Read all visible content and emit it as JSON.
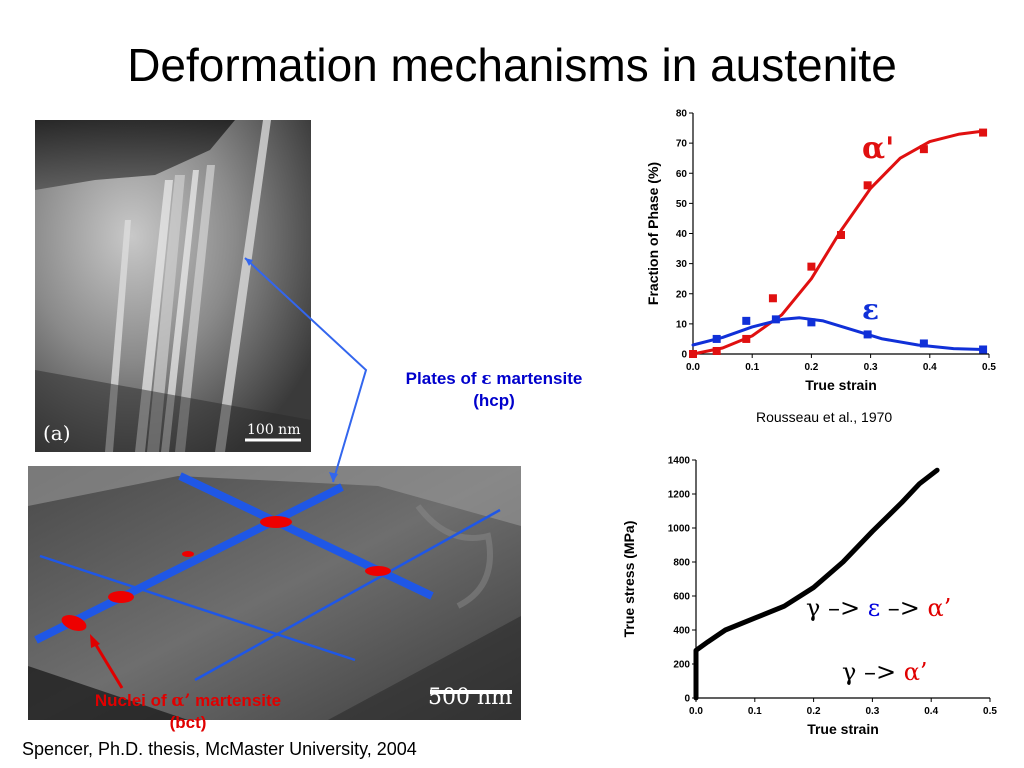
{
  "slide": {
    "title": "Deformation mechanisms in austenite"
  },
  "micrograph_top": {
    "panel_label": "(a)",
    "scale_bar": "100 nm"
  },
  "micrograph_bottom": {
    "scale_bar": "500 nm"
  },
  "callouts": {
    "plates_prefix": "Plates of ",
    "plates_greek": "ε",
    "plates_suffix": " martensite",
    "plates_line2": "(hcp)",
    "nuclei_prefix": "Nuclei of ",
    "nuclei_greek": "α’",
    "nuclei_suffix": " martensite",
    "nuclei_line2": "(bct)",
    "colors": {
      "blue": "#0000cc",
      "red": "#e00000",
      "line_blue": "#1f57e6"
    }
  },
  "citations": {
    "bottom": "Spencer, Ph.D. thesis, McMaster University, 2004",
    "chart_top": "Rousseau et al., 1970"
  },
  "routes": {
    "route1": {
      "gamma": "γ",
      "arrow1": " –> ",
      "epsilon": "ε",
      "arrow2": " –> ",
      "alpha": "α’"
    },
    "route2": {
      "gamma": "γ",
      "arrow": " –> ",
      "alpha": "α’"
    }
  },
  "chart_data": [
    {
      "type": "scatter",
      "xlabel": "True strain",
      "ylabel": "Fraction of Phase (%)",
      "xlim": [
        0,
        0.5
      ],
      "ylim": [
        0,
        80
      ],
      "xticks": [
        "0.0",
        "0.1",
        "0.2",
        "0.3",
        "0.4",
        "0.5"
      ],
      "yticks": [
        "0",
        "10",
        "20",
        "30",
        "40",
        "50",
        "60",
        "70",
        "80"
      ],
      "series": [
        {
          "name": "α'",
          "color": "#e01010",
          "points": [
            [
              0.0,
              0.0
            ],
            [
              0.04,
              1.0
            ],
            [
              0.09,
              5.0
            ],
            [
              0.135,
              18.5
            ],
            [
              0.2,
              29
            ],
            [
              0.25,
              39.5
            ],
            [
              0.295,
              56
            ],
            [
              0.39,
              68
            ],
            [
              0.49,
              73.5
            ]
          ],
          "fit": [
            [
              0.0,
              0
            ],
            [
              0.05,
              2
            ],
            [
              0.1,
              6
            ],
            [
              0.15,
              13
            ],
            [
              0.2,
              25
            ],
            [
              0.25,
              41
            ],
            [
              0.3,
              55
            ],
            [
              0.35,
              65
            ],
            [
              0.4,
              70.5
            ],
            [
              0.45,
              73
            ],
            [
              0.49,
              74
            ]
          ]
        },
        {
          "name": "ε",
          "color": "#1030d8",
          "points": [
            [
              0.04,
              5.0
            ],
            [
              0.09,
              11.0
            ],
            [
              0.14,
              11.5
            ],
            [
              0.2,
              10.5
            ],
            [
              0.295,
              6.5
            ],
            [
              0.39,
              3.5
            ],
            [
              0.49,
              1.5
            ]
          ],
          "fit": [
            [
              0.0,
              3
            ],
            [
              0.05,
              5.5
            ],
            [
              0.1,
              9
            ],
            [
              0.15,
              11.5
            ],
            [
              0.18,
              12
            ],
            [
              0.22,
              11
            ],
            [
              0.27,
              8
            ],
            [
              0.32,
              5
            ],
            [
              0.38,
              3
            ],
            [
              0.44,
              1.8
            ],
            [
              0.49,
              1.5
            ]
          ]
        }
      ]
    },
    {
      "type": "line",
      "xlabel": "True strain",
      "ylabel": "True stress (MPa)",
      "xlim": [
        0,
        0.5
      ],
      "ylim": [
        0,
        1400
      ],
      "xticks": [
        "0.0",
        "0.1",
        "0.2",
        "0.3",
        "0.4",
        "0.5"
      ],
      "yticks": [
        "0",
        "200",
        "400",
        "600",
        "800",
        "1000",
        "1200",
        "1400"
      ],
      "series": [
        {
          "color": "#000000",
          "points": [
            [
              0.0,
              0
            ],
            [
              0.0,
              280
            ],
            [
              0.02,
              330
            ],
            [
              0.05,
              400
            ],
            [
              0.1,
              470
            ],
            [
              0.15,
              540
            ],
            [
              0.2,
              650
            ],
            [
              0.25,
              800
            ],
            [
              0.3,
              980
            ],
            [
              0.35,
              1150
            ],
            [
              0.38,
              1260
            ],
            [
              0.41,
              1340
            ]
          ]
        }
      ]
    }
  ]
}
